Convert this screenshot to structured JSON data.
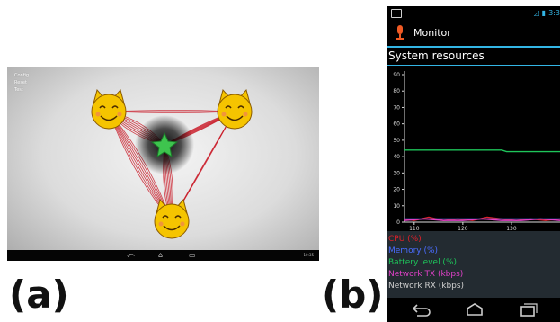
{
  "captions": {
    "a": "(a)",
    "b": "(b)"
  },
  "tablet": {
    "menu_items": [
      "Config",
      "Reset",
      "Test"
    ],
    "avatars": [
      "cat-face-icon",
      "cat-face-icon",
      "cat-face-icon"
    ],
    "center": "star-icon",
    "colors": {
      "link": "#c8101e",
      "star": "#3ec44e",
      "avatar": "#f5c400"
    },
    "nav_icons": [
      "back-icon",
      "home-icon",
      "recent-apps-icon"
    ],
    "corner_text": "10:35"
  },
  "phone": {
    "statusbar": {
      "clock": "3:3",
      "icons": [
        "notification-icon",
        "signal-icon",
        "battery-icon"
      ]
    },
    "app_title": "Monitor",
    "section_title": "System resources",
    "legend": [
      {
        "label": "CPU (%)",
        "color": "#e0202a"
      },
      {
        "label": "Memory (%)",
        "color": "#4a6cff"
      },
      {
        "label": "Battery level (%)",
        "color": "#1ec45a"
      },
      {
        "label": "Network TX (kbps)",
        "color": "#e040c8"
      },
      {
        "label": "Network RX (kbps)",
        "color": "#cfcfcf"
      }
    ],
    "nav_icons": [
      "back-icon",
      "home-icon",
      "recent-apps-icon"
    ]
  },
  "chart_data": {
    "type": "line",
    "title": "",
    "xlabel": "",
    "ylabel": "",
    "xlim": [
      108,
      140
    ],
    "ylim": [
      0,
      90
    ],
    "x_ticks": [
      110,
      120,
      130
    ],
    "y_ticks": [
      0,
      10,
      20,
      30,
      40,
      50,
      60,
      70,
      80,
      90
    ],
    "grid": false,
    "series": [
      {
        "name": "Battery level (%)",
        "color": "#1ec45a",
        "x": [
          108,
          128,
          129,
          140
        ],
        "values": [
          44,
          44,
          43,
          43
        ]
      },
      {
        "name": "CPU (%)",
        "color": "#e0202a",
        "x": [
          108,
          110,
          113,
          116,
          119,
          122,
          125,
          128,
          131,
          134,
          137,
          140
        ],
        "values": [
          2,
          1,
          3,
          1,
          2,
          1,
          3,
          2,
          1,
          2,
          1,
          2
        ]
      },
      {
        "name": "Memory (%)",
        "color": "#4a6cff",
        "x": [
          108,
          140
        ],
        "values": [
          2,
          2
        ]
      },
      {
        "name": "Network TX (kbps)",
        "color": "#e040c8",
        "x": [
          108,
          112,
          116,
          120,
          124,
          128,
          132,
          136,
          140
        ],
        "values": [
          1,
          2,
          1,
          1,
          2,
          1,
          1,
          2,
          1
        ]
      }
    ]
  }
}
